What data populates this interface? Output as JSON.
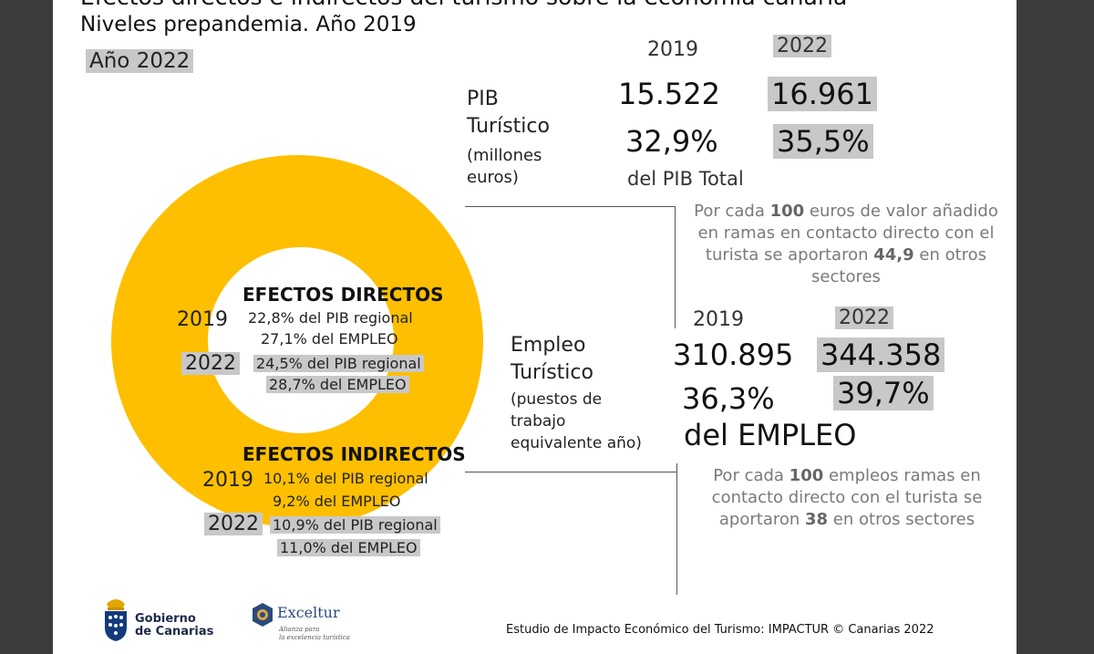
{
  "title": {
    "line1": "Efectos directos e indirectos del turismo sobre la economía canaria",
    "line2": "Niveles prepandemia. Año 2019",
    "year_badge": "Año 2022"
  },
  "pib": {
    "label1": "PIB",
    "label2": "Turístico",
    "unit1": "(millones",
    "unit2": "euros)",
    "year_2019": "2019",
    "year_2022": "2022",
    "value_2019": "15.522",
    "value_2022": "16.961",
    "pct_2019": "32,9%",
    "pct_2022": "35,5%",
    "pct_label": "del PIB Total",
    "note_a": "Por cada ",
    "note_num1": "100",
    "note_b": " euros de valor añadido en ramas en contacto directo con el turista se aportaron ",
    "note_num2": "44,9",
    "note_c": " en otros sectores"
  },
  "empleo": {
    "label1": "Empleo",
    "label2": "Turístico",
    "unit1": "(puestos de",
    "unit2": "trabajo",
    "unit3": "equivalente año)",
    "year_2019": "2019",
    "year_2022": "2022",
    "value_2019": "310.895",
    "value_2022": "344.358",
    "pct_2019": "36,3%",
    "pct_2022": "39,7%",
    "pct_label": "del EMPLEO",
    "note_a": "Por cada ",
    "note_num1": "100",
    "note_b": " empleos ramas en contacto directo con el turista se aportaron ",
    "note_num2": "38",
    "note_c": " en otros sectores"
  },
  "directos": {
    "heading": "EFECTOS DIRECTOS",
    "year_2019": "2019",
    "pib_2019": "22,8% del PIB regional",
    "empleo_2019": "27,1% del EMPLEO",
    "year_2022": "2022",
    "pib_2022": "24,5% del PIB regional",
    "empleo_2022": "28,7% del EMPLEO"
  },
  "indirectos": {
    "heading": "EFECTOS INDIRECTOS",
    "year_2019": "2019",
    "pib_2019": "10,1% del PIB regional",
    "empleo_2019": "9,2% del EMPLEO",
    "year_2022": "2022",
    "pib_2022": "10,9% del PIB regional",
    "empleo_2022": "11,0% del EMPLEO"
  },
  "logos": {
    "gobierno_line1": "Gobierno",
    "gobierno_line2": "de Canarias",
    "exceltur_name": "Exceltur",
    "exceltur_tag1": "Alianza para",
    "exceltur_tag2": "la excelencia turística"
  },
  "footer": {
    "source": "Estudio de Impacto Económico del Turismo: IMPACTUR © Canarias 2022"
  },
  "colors": {
    "ring": "#fdbf00",
    "highlight": "#c8c8c8",
    "note_gray": "#7a7a7a"
  }
}
